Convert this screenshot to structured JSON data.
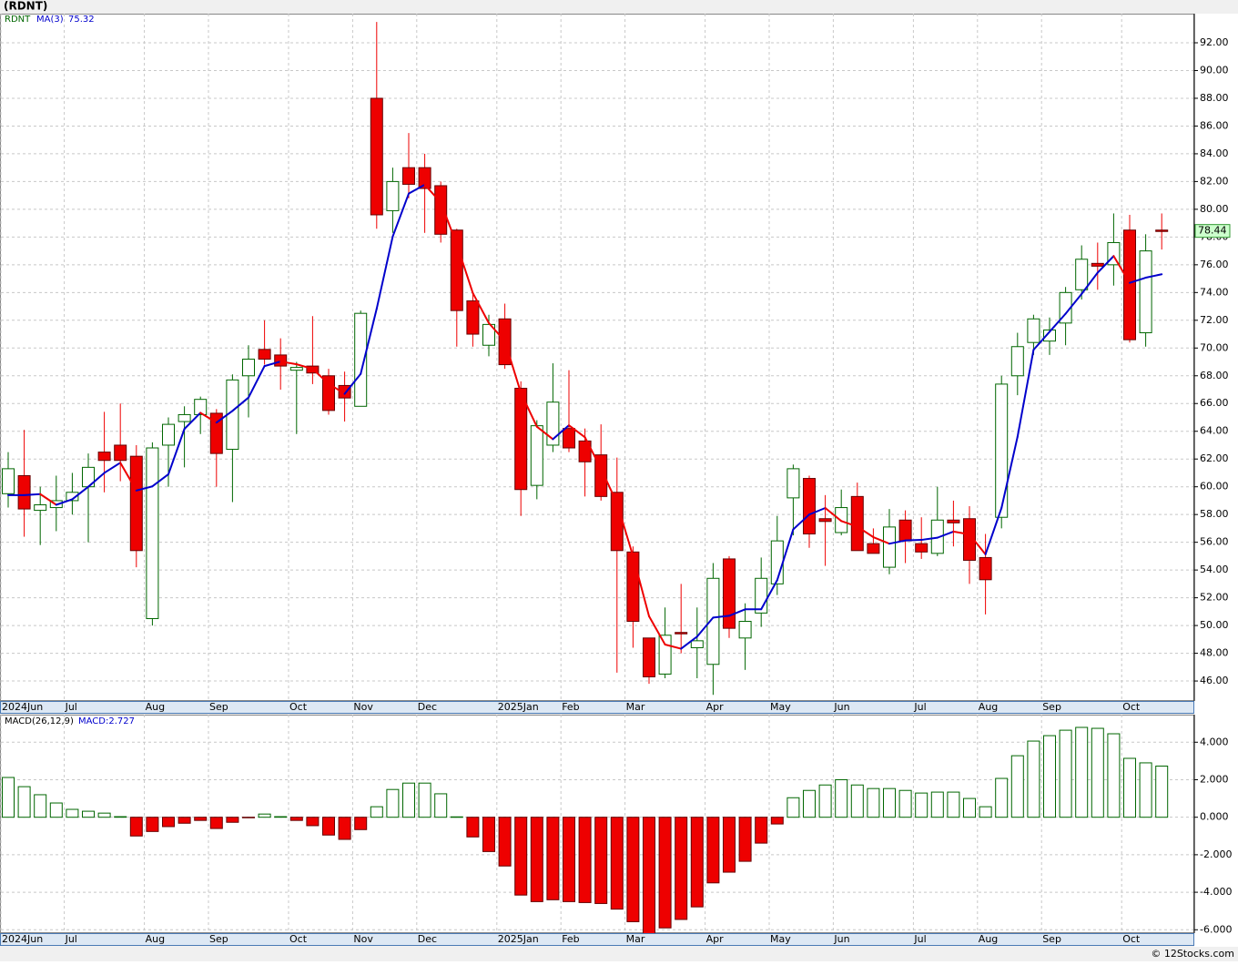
{
  "title": "(RDNT)",
  "footer": "© 12Stocks.com",
  "chart_data": [
    {
      "type": "candlestick",
      "categories": [
        "2024Jun",
        null,
        null,
        null,
        "Jul",
        null,
        null,
        null,
        null,
        "Aug",
        null,
        null,
        null,
        "Sep",
        null,
        null,
        null,
        null,
        "Oct",
        null,
        null,
        null,
        "Nov",
        null,
        null,
        null,
        "Dec",
        null,
        null,
        null,
        null,
        "2025Jan",
        null,
        null,
        null,
        "Feb",
        null,
        null,
        null,
        "Mar",
        null,
        null,
        null,
        null,
        "Apr",
        null,
        null,
        null,
        "May",
        null,
        null,
        null,
        "Jun",
        null,
        null,
        null,
        null,
        "Jul",
        null,
        null,
        null,
        "Aug",
        null,
        null,
        null,
        "Sep",
        null,
        null,
        null,
        null,
        "Oct",
        null,
        null
      ],
      "name": "RDNT",
      "open": [
        59.5,
        60.8,
        58.3,
        58.5,
        59.0,
        60.0,
        62.5,
        63.0,
        62.2,
        50.5,
        63.0,
        64.7,
        65.2,
        65.3,
        62.7,
        68.0,
        69.9,
        69.5,
        68.4,
        68.7,
        68.0,
        67.3,
        65.8,
        88.0,
        79.9,
        83.0,
        83.0,
        81.7,
        78.5,
        73.4,
        70.2,
        72.1,
        67.1,
        60.1,
        63.0,
        64.2,
        63.3,
        62.3,
        59.6,
        55.3,
        49.1,
        46.5,
        49.5,
        48.4,
        47.2,
        54.8,
        49.1,
        50.9,
        53.0,
        59.2,
        60.6,
        57.7,
        56.7,
        59.3,
        55.9,
        54.2,
        57.6,
        55.9,
        55.2,
        57.6,
        57.7,
        54.9,
        57.8,
        68.0,
        70.4,
        70.5,
        71.8,
        74.2,
        76.1,
        76.0,
        78.5,
        71.1,
        78.5
      ],
      "high": [
        62.5,
        64.1,
        60.0,
        60.8,
        61.0,
        62.4,
        65.4,
        66.0,
        63.0,
        63.2,
        65.0,
        65.8,
        66.5,
        65.6,
        68.1,
        70.2,
        72.0,
        70.7,
        69.0,
        72.3,
        68.5,
        68.3,
        72.7,
        93.5,
        83.0,
        85.5,
        84.0,
        82.0,
        78.6,
        74.0,
        72.4,
        73.2,
        67.6,
        64.8,
        68.9,
        68.4,
        64.2,
        64.5,
        62.1,
        55.7,
        49.1,
        51.3,
        53.0,
        51.3,
        54.5,
        55.0,
        51.6,
        54.9,
        57.9,
        61.6,
        60.8,
        59.4,
        59.8,
        60.3,
        57.0,
        58.4,
        58.3,
        57.8,
        60.0,
        59.0,
        58.6,
        56.6,
        68.0,
        71.1,
        72.4,
        72.2,
        74.4,
        77.4,
        77.6,
        79.7,
        79.6,
        78.2,
        79.7
      ],
      "low": [
        58.5,
        56.4,
        55.8,
        56.8,
        58.0,
        56.0,
        59.6,
        60.4,
        54.2,
        50.0,
        60.0,
        61.4,
        63.8,
        60.0,
        58.9,
        65.0,
        68.8,
        67.0,
        63.8,
        67.4,
        65.2,
        64.7,
        65.8,
        78.6,
        78.3,
        80.8,
        78.3,
        77.6,
        70.1,
        70.1,
        69.4,
        68.5,
        57.9,
        59.1,
        62.5,
        62.5,
        59.3,
        59.0,
        46.6,
        48.4,
        45.8,
        46.2,
        48.0,
        46.2,
        45.0,
        49.1,
        46.8,
        49.9,
        52.2,
        56.5,
        55.6,
        54.3,
        56.5,
        55.4,
        55.2,
        53.7,
        54.5,
        54.8,
        55.0,
        55.7,
        53.0,
        50.8,
        57.0,
        66.6,
        69.5,
        69.5,
        70.2,
        73.5,
        74.2,
        74.5,
        70.4,
        70.1,
        77.1
      ],
      "close": [
        61.3,
        58.4,
        58.7,
        59.0,
        59.6,
        61.4,
        61.9,
        61.9,
        55.4,
        62.8,
        64.5,
        65.2,
        66.3,
        62.4,
        67.7,
        69.2,
        69.2,
        68.7,
        68.6,
        68.2,
        65.5,
        66.4,
        72.5,
        79.6,
        82.0,
        81.8,
        81.5,
        78.2,
        72.7,
        71.0,
        71.7,
        68.8,
        59.8,
        64.4,
        66.1,
        62.8,
        61.8,
        59.3,
        55.4,
        50.3,
        46.3,
        49.3,
        49.4,
        48.9,
        53.4,
        49.8,
        50.3,
        53.4,
        56.1,
        61.3,
        56.6,
        57.5,
        58.5,
        55.4,
        55.2,
        57.1,
        56.1,
        55.3,
        57.6,
        57.4,
        54.7,
        53.3,
        67.4,
        70.1,
        72.1,
        71.3,
        74.0,
        76.4,
        75.9,
        77.6,
        70.6,
        77.0,
        78.44
      ],
      "up_color": "#006600",
      "down_color": "#ee0000",
      "ma_name": "MA(3)",
      "ma": [
        59.4,
        59.4,
        59.47,
        58.7,
        59.1,
        60.0,
        61.0,
        61.73,
        59.73,
        60.03,
        60.9,
        64.17,
        65.33,
        64.63,
        65.47,
        66.43,
        68.7,
        69.03,
        68.83,
        68.5,
        67.43,
        66.7,
        68.13,
        72.83,
        78.03,
        81.13,
        81.77,
        80.5,
        77.47,
        73.97,
        71.8,
        70.5,
        66.77,
        64.33,
        63.43,
        64.43,
        63.57,
        61.3,
        58.83,
        55.0,
        50.67,
        48.63,
        48.33,
        49.2,
        50.57,
        50.7,
        51.17,
        51.17,
        53.27,
        56.93,
        58.0,
        58.47,
        57.53,
        57.13,
        56.37,
        55.9,
        56.13,
        56.17,
        56.33,
        56.77,
        56.57,
        55.13,
        58.47,
        63.6,
        69.87,
        71.17,
        72.47,
        73.9,
        75.43,
        76.63,
        74.7,
        75.07,
        75.32
      ],
      "ma_up_color": "#0000cc",
      "ma_down_color": "#ee0000",
      "ylim": [
        44.56,
        94.1
      ],
      "yticks": [
        {
          "value": 46,
          "label": "46.00"
        },
        {
          "value": 48,
          "label": "48.00"
        },
        {
          "value": 50,
          "label": "50.00"
        },
        {
          "value": 52,
          "label": "52.00"
        },
        {
          "value": 54,
          "label": "54.00"
        },
        {
          "value": 56,
          "label": "56.00"
        },
        {
          "value": 58,
          "label": "58.00"
        },
        {
          "value": 60,
          "label": "60.00"
        },
        {
          "value": 62,
          "label": "62.00"
        },
        {
          "value": 64,
          "label": "64.00"
        },
        {
          "value": 66,
          "label": "66.00"
        },
        {
          "value": 68,
          "label": "68.00"
        },
        {
          "value": 70,
          "label": "70.00"
        },
        {
          "value": 72,
          "label": "72.00"
        },
        {
          "value": 74,
          "label": "74.00"
        },
        {
          "value": 76,
          "label": "76.00"
        },
        {
          "value": 78,
          "label": "78.00"
        },
        {
          "value": 80,
          "label": "80.00"
        },
        {
          "value": 82,
          "label": "82.00"
        },
        {
          "value": 84,
          "label": "84.00"
        },
        {
          "value": 86,
          "label": "86.00"
        },
        {
          "value": 88,
          "label": "88.00"
        },
        {
          "value": 90,
          "label": "90.00"
        },
        {
          "value": 92,
          "label": "92.00"
        }
      ],
      "grid": true
    },
    {
      "type": "bar",
      "categories": [
        "2024Jun",
        null,
        null,
        null,
        "Jul",
        null,
        null,
        null,
        null,
        "Aug",
        null,
        null,
        null,
        "Sep",
        null,
        null,
        null,
        null,
        "Oct",
        null,
        null,
        null,
        "Nov",
        null,
        null,
        null,
        "Dec",
        null,
        null,
        null,
        null,
        "2025Jan",
        null,
        null,
        null,
        "Feb",
        null,
        null,
        null,
        "Mar",
        null,
        null,
        null,
        null,
        "Apr",
        null,
        null,
        null,
        "May",
        null,
        null,
        null,
        "Jun",
        null,
        null,
        null,
        null,
        "Jul",
        null,
        null,
        null,
        "Aug",
        null,
        null,
        null,
        "Sep",
        null,
        null,
        null,
        null,
        "Oct",
        null,
        null
      ],
      "title": "MACD(26,12,9)",
      "value_title": "MACD:2.727",
      "values": [
        2.12,
        1.63,
        1.2,
        0.76,
        0.42,
        0.32,
        0.22,
        0.03,
        -1.0,
        -0.76,
        -0.5,
        -0.32,
        -0.17,
        -0.6,
        -0.27,
        -0.03,
        0.17,
        0.03,
        -0.17,
        -0.45,
        -0.95,
        -1.18,
        -0.66,
        0.56,
        1.48,
        1.82,
        1.82,
        1.25,
        0.02,
        -1.05,
        -1.83,
        -2.6,
        -4.15,
        -4.5,
        -4.4,
        -4.5,
        -4.55,
        -4.6,
        -4.9,
        -5.57,
        -6.4,
        -5.9,
        -5.45,
        -4.78,
        -3.5,
        -2.93,
        -2.35,
        -1.38,
        -0.36,
        1.04,
        1.43,
        1.72,
        2.0,
        1.72,
        1.53,
        1.53,
        1.43,
        1.29,
        1.34,
        1.34,
        1.0,
        0.56,
        2.07,
        3.28,
        4.06,
        4.35,
        4.64,
        4.79,
        4.74,
        4.45,
        3.14,
        2.9,
        2.727
      ],
      "up_color": "#006600",
      "down_color": "#ee0000",
      "ylim": [
        -6.18,
        5.47
      ],
      "yticks": [
        {
          "value": -6,
          "label": "-6.000"
        },
        {
          "value": -4,
          "label": "-4.000"
        },
        {
          "value": -2,
          "label": "-2.000"
        },
        {
          "value": 0,
          "label": "0.000"
        },
        {
          "value": 2,
          "label": "2.000"
        },
        {
          "value": 4,
          "label": "4.000"
        }
      ],
      "grid": true
    }
  ]
}
